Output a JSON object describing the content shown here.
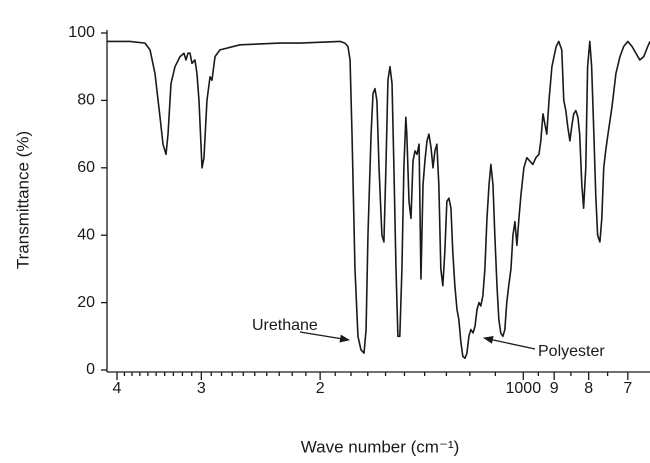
{
  "chart_data": {
    "type": "line",
    "xlabel": "Wave number (cm⁻¹)",
    "ylabel": "Transmittance (%)",
    "color": "#1a1a1a",
    "xscale": "log",
    "xlim": [
      4139,
      649
    ],
    "ylim": [
      0,
      100
    ],
    "xticks": [
      {
        "value": 4000,
        "label": "4"
      },
      {
        "value": 3000,
        "label": "3"
      },
      {
        "value": 2000,
        "label": "2"
      },
      1000,
      {
        "value": 900,
        "label": "9"
      },
      {
        "value": 800,
        "label": "8"
      },
      {
        "value": 700,
        "label": "7"
      }
    ],
    "xminorticks": [
      3900,
      3800,
      3700,
      3600,
      3500,
      3400,
      3300,
      3200,
      3100,
      2900,
      2800,
      2700,
      2600,
      2500,
      2400,
      2300,
      2200,
      2100,
      1900,
      1800,
      1700,
      1600,
      1500,
      1400,
      1300,
      1200,
      1100,
      950,
      850,
      750
    ],
    "yticks": [
      0,
      20,
      40,
      60,
      80,
      100
    ],
    "annotations": [
      {
        "text": "Urethane"
      },
      {
        "text": "Polyester"
      }
    ],
    "x": [
      4139,
      3827,
      3636,
      3574,
      3514,
      3454,
      3419,
      3384,
      3361,
      3327,
      3282,
      3226,
      3183,
      3161,
      3140,
      3118,
      3097,
      3066,
      3045,
      3024,
      2993,
      2973,
      2943,
      2912,
      2893,
      2863,
      2815,
      2629,
      2294,
      2142,
      1869,
      1838,
      1819,
      1806,
      1794,
      1776,
      1758,
      1740,
      1722,
      1710,
      1699,
      1681,
      1670,
      1659,
      1648,
      1636,
      1620,
      1609,
      1598,
      1587,
      1576,
      1565,
      1555,
      1544,
      1534,
      1524,
      1513,
      1503,
      1493,
      1488,
      1477,
      1467,
      1457,
      1447,
      1437,
      1427,
      1418,
      1408,
      1399,
      1389,
      1380,
      1370,
      1361,
      1352,
      1343,
      1334,
      1325,
      1316,
      1307,
      1298,
      1289,
      1280,
      1272,
      1263,
      1254,
      1246,
      1237,
      1229,
      1220,
      1212,
      1204,
      1196,
      1187,
      1179,
      1171,
      1163,
      1156,
      1148,
      1140,
      1132,
      1124,
      1117,
      1109,
      1102,
      1094,
      1087,
      1080,
      1072,
      1065,
      1058,
      1051,
      1043,
      1036,
      1029,
      1022,
      1015,
      1008,
      998,
      988,
      978,
      968,
      958,
      948,
      942,
      935,
      929,
      923,
      916,
      907,
      894,
      886,
      877,
      871,
      865,
      859,
      853,
      848,
      842,
      836,
      830,
      825,
      819,
      814,
      808,
      803,
      797,
      792,
      786,
      781,
      776,
      770,
      765,
      760,
      755,
      749,
      739,
      729,
      719,
      710,
      700,
      690,
      681,
      672,
      663,
      654,
      649
    ],
    "values": [
      97.5,
      97.5,
      97,
      95,
      88,
      75,
      67,
      64,
      70,
      85,
      90,
      93,
      94,
      92,
      94,
      94,
      91,
      92,
      88,
      80,
      60,
      63,
      80,
      87,
      86,
      93,
      95,
      96.5,
      97,
      97,
      97.5,
      97,
      96,
      92,
      70,
      30,
      10,
      6,
      5,
      12,
      40,
      70,
      82,
      83.5,
      80,
      60,
      40,
      38,
      60,
      86,
      90,
      85,
      60,
      30,
      10,
      10,
      30,
      60,
      75,
      70,
      50,
      45,
      62,
      65,
      64,
      67,
      27,
      55,
      62,
      68,
      70,
      66,
      60,
      65,
      67,
      55,
      30,
      25,
      35,
      50,
      51,
      48,
      35,
      25,
      18,
      15,
      8,
      4,
      3.5,
      5,
      10,
      12,
      11,
      13,
      18,
      20,
      19,
      22,
      30,
      45,
      55,
      61,
      55,
      40,
      25,
      15,
      11,
      10,
      12,
      20,
      25,
      30,
      40,
      44,
      37,
      45,
      52,
      60,
      63,
      62,
      61,
      63,
      64,
      68,
      76,
      73,
      70,
      80,
      90,
      96,
      97.5,
      95,
      80,
      77,
      72,
      68,
      72,
      76,
      77,
      75,
      70,
      55,
      48,
      60,
      90,
      97.5,
      90,
      70,
      52,
      40,
      38,
      45,
      60,
      65,
      70,
      78,
      88,
      93,
      96,
      97.5,
      96,
      94,
      92,
      93,
      96,
      97.5
    ]
  }
}
